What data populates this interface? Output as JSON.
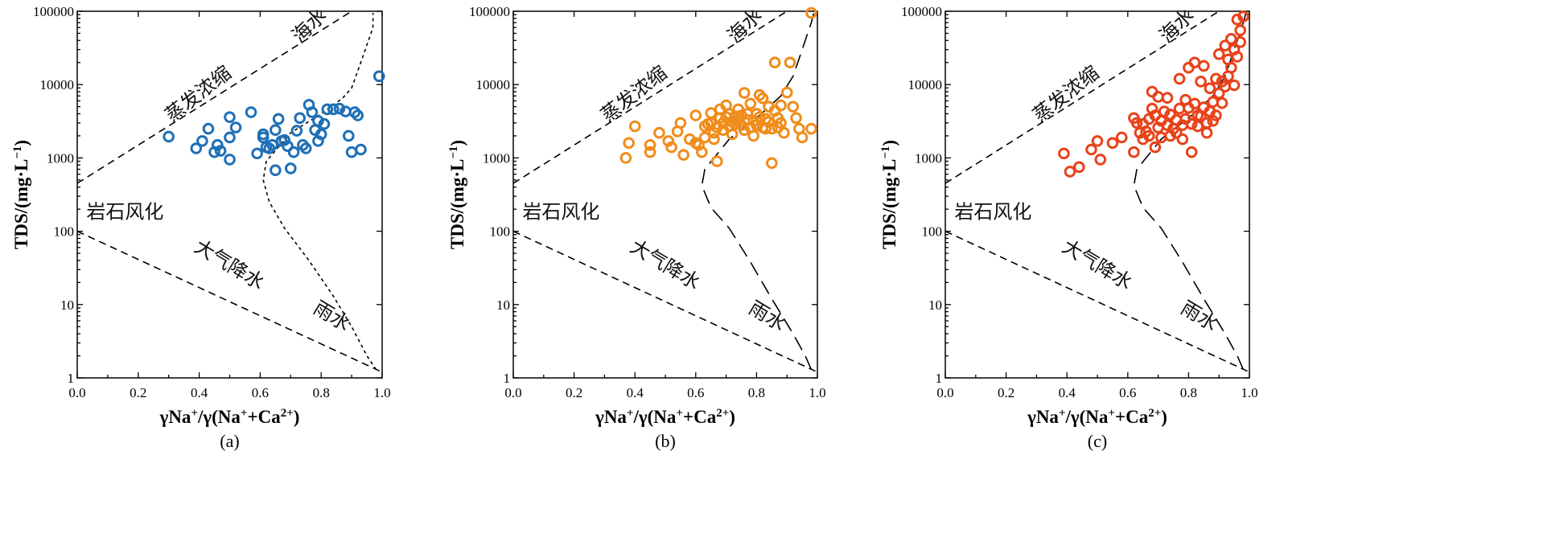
{
  "colors": {
    "panel_a": "#1f6fb6",
    "panel_b": "#f08c1a",
    "panel_c": "#e8421a"
  },
  "x_axis_title_parts": [
    "γNa",
    "+",
    "/γ(Na",
    "+",
    "+Ca",
    "2+",
    ")"
  ],
  "y_axis_title_parts": [
    "TDS/(mg·L",
    "−1",
    ")"
  ],
  "region_labels": {
    "seawater": "海水",
    "evaporation": "蒸发浓缩",
    "rock_weathering": "岩石风化",
    "atmospheric_precipitation": "大气降水",
    "rainwater": "雨水"
  },
  "chart_data": [
    {
      "type": "scatter",
      "panel_label": "(a)",
      "xlim": [
        0.0,
        1.0
      ],
      "ylim": [
        1,
        100000
      ],
      "y_scale": "log",
      "x_ticks": [
        "0.0",
        "0.2",
        "0.4",
        "0.6",
        "0.8",
        "1.0"
      ],
      "y_ticks": [
        "1",
        "10",
        "100",
        "1000",
        "10000",
        "100000"
      ],
      "boundary_style": "dotted",
      "x": [
        0.3,
        0.39,
        0.41,
        0.43,
        0.45,
        0.46,
        0.47,
        0.5,
        0.5,
        0.5,
        0.52,
        0.57,
        0.59,
        0.61,
        0.61,
        0.62,
        0.63,
        0.64,
        0.65,
        0.65,
        0.66,
        0.67,
        0.68,
        0.69,
        0.7,
        0.71,
        0.72,
        0.73,
        0.74,
        0.75,
        0.76,
        0.77,
        0.78,
        0.79,
        0.79,
        0.8,
        0.81,
        0.82,
        0.84,
        0.86,
        0.88,
        0.89,
        0.9,
        0.91,
        0.92,
        0.93,
        0.99
      ],
      "y": [
        1950,
        1350,
        1700,
        2500,
        1200,
        1500,
        1250,
        3600,
        1900,
        950,
        2600,
        4200,
        1150,
        2100,
        1900,
        1400,
        1350,
        1500,
        680,
        2400,
        3400,
        1700,
        1750,
        1450,
        720,
        1200,
        2350,
        3500,
        1500,
        1350,
        5300,
        4200,
        2400,
        3200,
        1700,
        2100,
        2900,
        4600,
        4600,
        4700,
        4300,
        2000,
        1200,
        4200,
        3800,
        1300,
        13000
      ]
    },
    {
      "type": "scatter",
      "panel_label": "(b)",
      "xlim": [
        0.0,
        1.0
      ],
      "ylim": [
        1,
        100000
      ],
      "y_scale": "log",
      "x_ticks": [
        "0.0",
        "0.2",
        "0.4",
        "0.6",
        "0.8",
        "1.0"
      ],
      "y_ticks": [
        "1",
        "10",
        "100",
        "1000",
        "10000",
        "100000"
      ],
      "boundary_style": "long-dash",
      "x": [
        0.37,
        0.38,
        0.4,
        0.45,
        0.45,
        0.48,
        0.51,
        0.52,
        0.54,
        0.55,
        0.56,
        0.58,
        0.6,
        0.6,
        0.61,
        0.62,
        0.63,
        0.63,
        0.64,
        0.65,
        0.65,
        0.66,
        0.66,
        0.67,
        0.67,
        0.68,
        0.68,
        0.69,
        0.69,
        0.7,
        0.7,
        0.71,
        0.71,
        0.72,
        0.72,
        0.73,
        0.73,
        0.74,
        0.74,
        0.75,
        0.75,
        0.76,
        0.76,
        0.77,
        0.77,
        0.78,
        0.78,
        0.79,
        0.79,
        0.8,
        0.8,
        0.81,
        0.81,
        0.82,
        0.82,
        0.83,
        0.83,
        0.84,
        0.84,
        0.85,
        0.85,
        0.86,
        0.86,
        0.87,
        0.87,
        0.88,
        0.88,
        0.89,
        0.9,
        0.91,
        0.92,
        0.93,
        0.94,
        0.95,
        0.98,
        0.98
      ],
      "y": [
        1000,
        1600,
        2700,
        1500,
        1200,
        2200,
        1700,
        1400,
        2300,
        3000,
        1100,
        1800,
        3800,
        1600,
        1500,
        1200,
        2700,
        1900,
        2900,
        4100,
        3000,
        2200,
        1800,
        900,
        2600,
        4600,
        3500,
        3000,
        2400,
        5200,
        3600,
        4000,
        2700,
        2100,
        3100,
        3700,
        2900,
        4600,
        3300,
        3800,
        2800,
        7700,
        2400,
        4000,
        3300,
        2600,
        5500,
        3200,
        2000,
        4000,
        2800,
        7200,
        3600,
        2600,
        6500,
        3400,
        2500,
        3100,
        5000,
        850,
        2500,
        20000,
        4400,
        3500,
        2600,
        5200,
        3000,
        2200,
        7800,
        20000,
        5000,
        3500,
        2500,
        1900,
        2500,
        95000
      ]
    },
    {
      "type": "scatter",
      "panel_label": "(c)",
      "xlim": [
        0.0,
        1.0
      ],
      "ylim": [
        1,
        100000
      ],
      "y_scale": "log",
      "x_ticks": [
        "0.0",
        "0.2",
        "0.4",
        "0.6",
        "0.8",
        "1.0"
      ],
      "y_ticks": [
        "1",
        "10",
        "100",
        "1000",
        "10000",
        "100000"
      ],
      "boundary_style": "long-dash",
      "x": [
        0.39,
        0.41,
        0.44,
        0.48,
        0.5,
        0.51,
        0.55,
        0.58,
        0.62,
        0.62,
        0.63,
        0.64,
        0.65,
        0.65,
        0.66,
        0.67,
        0.67,
        0.68,
        0.68,
        0.69,
        0.69,
        0.7,
        0.7,
        0.71,
        0.71,
        0.72,
        0.73,
        0.73,
        0.74,
        0.74,
        0.75,
        0.76,
        0.76,
        0.77,
        0.77,
        0.78,
        0.78,
        0.79,
        0.79,
        0.8,
        0.8,
        0.81,
        0.81,
        0.82,
        0.82,
        0.83,
        0.83,
        0.84,
        0.84,
        0.85,
        0.85,
        0.86,
        0.86,
        0.87,
        0.87,
        0.88,
        0.88,
        0.89,
        0.89,
        0.9,
        0.9,
        0.91,
        0.91,
        0.92,
        0.92,
        0.93,
        0.93,
        0.94,
        0.94,
        0.95,
        0.95,
        0.96,
        0.96,
        0.97,
        0.97,
        0.98
      ],
      "y": [
        1150,
        650,
        750,
        1300,
        1700,
        950,
        1600,
        1900,
        3500,
        1200,
        3000,
        2200,
        2900,
        1800,
        2300,
        3400,
        2000,
        8000,
        4700,
        3800,
        1400,
        6800,
        2600,
        3200,
        1900,
        4300,
        6600,
        2800,
        2000,
        3900,
        2500,
        3300,
        2200,
        12000,
        4700,
        2800,
        1800,
        6200,
        3400,
        17000,
        4800,
        2900,
        1200,
        20000,
        5500,
        3800,
        2700,
        11000,
        3700,
        18000,
        4900,
        3000,
        2200,
        8900,
        4300,
        5800,
        3200,
        12000,
        3800,
        26000,
        7600,
        11000,
        5600,
        34000,
        9400,
        22000,
        13000,
        42000,
        17000,
        30000,
        9800,
        77000,
        24000,
        55000,
        38000,
        85000
      ]
    }
  ]
}
